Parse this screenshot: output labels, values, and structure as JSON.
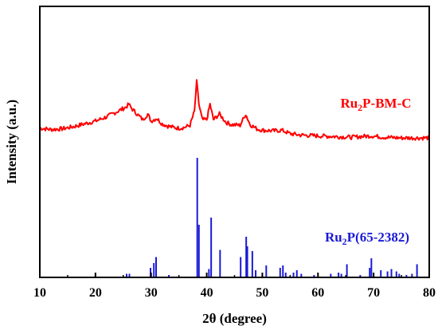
{
  "chart_data": {
    "type": "line",
    "xlabel": "2θ (degree)",
    "ylabel": "Intensity (a.u.)",
    "xlim": [
      10,
      80
    ],
    "x_ticks": [
      10,
      20,
      30,
      40,
      50,
      60,
      70,
      80
    ],
    "y_ticks_shown": false,
    "grid": false,
    "colors": {
      "measured": "#ff0000",
      "reference": "#1a1ad6",
      "axis": "#000000"
    },
    "series": [
      {
        "name": "Ru2P-BM-C",
        "label_base": "Ru",
        "label_sub": "2",
        "label_rest": "P-BM-C",
        "kind": "xrd-pattern",
        "color": "#ff0000",
        "intensity_scale": "relative, 0-100",
        "points": [
          [
            10,
            28
          ],
          [
            12,
            27
          ],
          [
            14,
            27.5
          ],
          [
            16,
            29
          ],
          [
            18,
            31
          ],
          [
            20,
            33
          ],
          [
            22,
            36
          ],
          [
            23.5,
            39
          ],
          [
            24.5,
            41
          ],
          [
            25.5,
            43
          ],
          [
            26,
            45
          ],
          [
            26.5,
            42
          ],
          [
            27.5,
            38
          ],
          [
            28.5,
            34
          ],
          [
            29.4,
            38
          ],
          [
            30,
            33
          ],
          [
            31,
            35
          ],
          [
            32,
            31
          ],
          [
            33,
            29.5
          ],
          [
            34,
            28.5
          ],
          [
            35,
            28
          ],
          [
            36,
            28.5
          ],
          [
            37,
            30
          ],
          [
            37.8,
            40
          ],
          [
            38.2,
            61
          ],
          [
            38.6,
            45
          ],
          [
            39.2,
            34
          ],
          [
            40,
            34
          ],
          [
            40.6,
            45
          ],
          [
            41.2,
            34
          ],
          [
            42.3,
            38
          ],
          [
            43.5,
            32
          ],
          [
            44.5,
            30.5
          ],
          [
            46,
            30
          ],
          [
            47,
            38
          ],
          [
            47.8,
            30.5
          ],
          [
            49,
            27.5
          ],
          [
            50,
            26.5
          ],
          [
            52,
            26
          ],
          [
            53.5,
            26.5
          ],
          [
            55,
            24
          ],
          [
            57,
            23
          ],
          [
            60,
            22.5
          ],
          [
            63,
            22
          ],
          [
            66,
            21.5
          ],
          [
            69.5,
            22.5
          ],
          [
            72,
            21.5
          ],
          [
            75,
            21
          ],
          [
            78,
            21
          ],
          [
            80,
            21
          ]
        ]
      },
      {
        "name": "Ru2P(65-2382)",
        "label_base": "Ru",
        "label_sub": "2",
        "label_rest": "P(65-2382)",
        "kind": "reference-sticks",
        "color": "#1a1ad6",
        "intensity_scale": "relative, 0-100",
        "sticks": [
          [
            20.0,
            1.5
          ],
          [
            25.6,
            3
          ],
          [
            26.1,
            3
          ],
          [
            29.9,
            8
          ],
          [
            30.5,
            12
          ],
          [
            30.9,
            17
          ],
          [
            33.2,
            2
          ],
          [
            38.3,
            100
          ],
          [
            38.6,
            44
          ],
          [
            40.4,
            7
          ],
          [
            40.8,
            50
          ],
          [
            42.4,
            23
          ],
          [
            46.1,
            17
          ],
          [
            47.1,
            34
          ],
          [
            47.3,
            26
          ],
          [
            48.2,
            22
          ],
          [
            48.8,
            6
          ],
          [
            50.7,
            10
          ],
          [
            53.2,
            8
          ],
          [
            53.7,
            10
          ],
          [
            54.2,
            4
          ],
          [
            55.6,
            4
          ],
          [
            56.2,
            6
          ],
          [
            57.0,
            3
          ],
          [
            59.3,
            2
          ],
          [
            62.3,
            3
          ],
          [
            63.7,
            4
          ],
          [
            64.2,
            3
          ],
          [
            65.2,
            11
          ],
          [
            67.6,
            2
          ],
          [
            69.3,
            8
          ],
          [
            69.6,
            16
          ],
          [
            71.3,
            6
          ],
          [
            72.5,
            5
          ],
          [
            73.2,
            7
          ],
          [
            74.1,
            5
          ],
          [
            74.6,
            3
          ],
          [
            75.9,
            2
          ],
          [
            76.9,
            3
          ],
          [
            77.8,
            11
          ]
        ]
      }
    ]
  }
}
